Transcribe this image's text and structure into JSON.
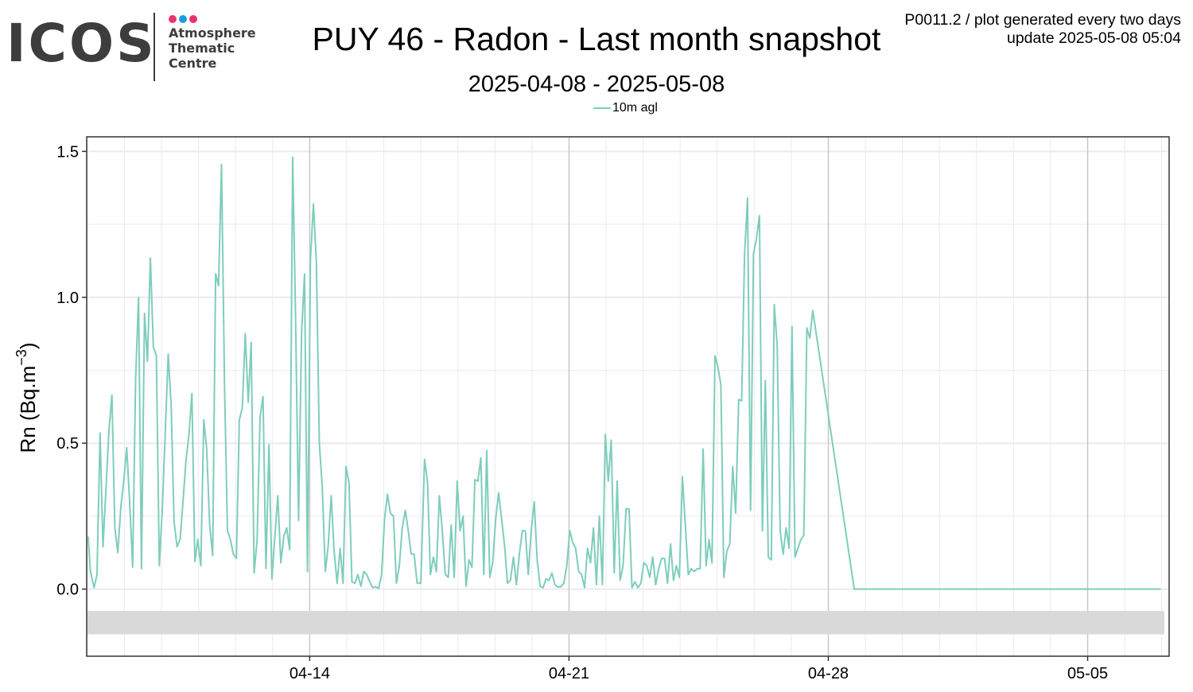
{
  "logo": {
    "word": "ICOS",
    "lines": [
      "Atmosphere",
      "Thematic",
      "Centre"
    ],
    "dot_colors": [
      "#e8336d",
      "#1e9be0",
      "#e8336d"
    ]
  },
  "info": {
    "line1": "P0011.2 / plot generated every two days",
    "line2": "update  2025-05-08 05:04"
  },
  "chart_data": {
    "type": "line",
    "title": "PUY 46 - Radon - Last month snapshot",
    "subtitle": "2025-04-08 - 2025-05-08",
    "ylabel_base": "Rn (Bq.m",
    "ylabel_sup": "−3",
    "ylabel_close": ")",
    "xlabel": "",
    "x_unit": "day of 2025 (04-14 = 0)",
    "xlim": [
      -6.02,
      23.2
    ],
    "ylim": [
      -0.23,
      1.55
    ],
    "y_ticks": [
      0.0,
      0.5,
      1.0,
      1.5
    ],
    "y_tick_labels": [
      "0.0",
      "0.5",
      "1.0",
      "1.5"
    ],
    "x_ticks": [
      0,
      7,
      14,
      21
    ],
    "x_tick_labels": [
      "04-14",
      "04-21",
      "04-28",
      "05-05"
    ],
    "grid": true,
    "legend_position": "top",
    "series": [
      {
        "name": "10m agl",
        "color": "#7fcdbb",
        "points": [
          [
            -5.98,
            0.18
          ],
          [
            -5.92,
            0.06
          ],
          [
            -5.82,
            0.005
          ],
          [
            -5.74,
            0.05
          ],
          [
            -5.66,
            0.535
          ],
          [
            -5.58,
            0.145
          ],
          [
            -5.5,
            0.34
          ],
          [
            -5.42,
            0.54
          ],
          [
            -5.34,
            0.665
          ],
          [
            -5.26,
            0.21
          ],
          [
            -5.18,
            0.125
          ],
          [
            -5.1,
            0.28
          ],
          [
            -5.02,
            0.37
          ],
          [
            -4.94,
            0.485
          ],
          [
            -4.86,
            0.3
          ],
          [
            -4.78,
            0.075
          ],
          [
            -4.7,
            0.72
          ],
          [
            -4.62,
            1.0
          ],
          [
            -4.54,
            0.07
          ],
          [
            -4.46,
            0.945
          ],
          [
            -4.38,
            0.78
          ],
          [
            -4.3,
            1.135
          ],
          [
            -4.22,
            0.83
          ],
          [
            -4.14,
            0.8
          ],
          [
            -4.06,
            0.08
          ],
          [
            -3.98,
            0.27
          ],
          [
            -3.9,
            0.53
          ],
          [
            -3.82,
            0.805
          ],
          [
            -3.74,
            0.63
          ],
          [
            -3.66,
            0.23
          ],
          [
            -3.58,
            0.145
          ],
          [
            -3.5,
            0.17
          ],
          [
            -3.42,
            0.3
          ],
          [
            -3.34,
            0.44
          ],
          [
            -3.26,
            0.53
          ],
          [
            -3.18,
            0.67
          ],
          [
            -3.1,
            0.095
          ],
          [
            -3.02,
            0.17
          ],
          [
            -2.94,
            0.08
          ],
          [
            -2.86,
            0.58
          ],
          [
            -2.78,
            0.48
          ],
          [
            -2.7,
            0.22
          ],
          [
            -2.62,
            0.115
          ],
          [
            -2.54,
            1.08
          ],
          [
            -2.46,
            1.04
          ],
          [
            -2.38,
            1.455
          ],
          [
            -2.3,
            0.7
          ],
          [
            -2.22,
            0.2
          ],
          [
            -2.14,
            0.17
          ],
          [
            -2.06,
            0.12
          ],
          [
            -1.98,
            0.105
          ],
          [
            -1.9,
            0.58
          ],
          [
            -1.82,
            0.62
          ],
          [
            -1.74,
            0.875
          ],
          [
            -1.66,
            0.64
          ],
          [
            -1.58,
            0.845
          ],
          [
            -1.5,
            0.055
          ],
          [
            -1.42,
            0.17
          ],
          [
            -1.34,
            0.59
          ],
          [
            -1.26,
            0.66
          ],
          [
            -1.18,
            0.07
          ],
          [
            -1.1,
            0.495
          ],
          [
            -1.02,
            0.035
          ],
          [
            -0.94,
            0.18
          ],
          [
            -0.86,
            0.32
          ],
          [
            -0.78,
            0.09
          ],
          [
            -0.7,
            0.18
          ],
          [
            -0.62,
            0.21
          ],
          [
            -0.54,
            0.135
          ],
          [
            -0.46,
            1.48
          ],
          [
            -0.38,
            0.92
          ],
          [
            -0.3,
            0.235
          ],
          [
            -0.22,
            0.88
          ],
          [
            -0.14,
            1.08
          ],
          [
            -0.06,
            0.06
          ],
          [
            0.02,
            1.13
          ],
          [
            0.1,
            1.32
          ],
          [
            0.18,
            1.12
          ],
          [
            0.26,
            0.5
          ],
          [
            0.34,
            0.35
          ],
          [
            0.42,
            0.06
          ],
          [
            0.5,
            0.15
          ],
          [
            0.58,
            0.32
          ],
          [
            0.66,
            0.13
          ],
          [
            0.74,
            0.02
          ],
          [
            0.82,
            0.14
          ],
          [
            0.9,
            0.02
          ],
          [
            0.98,
            0.42
          ],
          [
            1.06,
            0.365
          ],
          [
            1.14,
            0.025
          ],
          [
            1.22,
            0.02
          ],
          [
            1.3,
            0.05
          ],
          [
            1.38,
            0.01
          ],
          [
            1.46,
            0.06
          ],
          [
            1.54,
            0.05
          ],
          [
            1.62,
            0.025
          ],
          [
            1.7,
            0.005
          ],
          [
            1.78,
            0.008
          ],
          [
            1.86,
            0.002
          ],
          [
            1.94,
            0.05
          ],
          [
            2.02,
            0.24
          ],
          [
            2.1,
            0.325
          ],
          [
            2.18,
            0.26
          ],
          [
            2.26,
            0.25
          ],
          [
            2.34,
            0.02
          ],
          [
            2.42,
            0.08
          ],
          [
            2.5,
            0.21
          ],
          [
            2.58,
            0.27
          ],
          [
            2.66,
            0.2
          ],
          [
            2.74,
            0.12
          ],
          [
            2.82,
            0.12
          ],
          [
            2.9,
            0.02
          ],
          [
            3.0,
            0.02
          ],
          [
            3.1,
            0.445
          ],
          [
            3.18,
            0.37
          ],
          [
            3.26,
            0.05
          ],
          [
            3.34,
            0.11
          ],
          [
            3.42,
            0.06
          ],
          [
            3.5,
            0.32
          ],
          [
            3.58,
            0.2
          ],
          [
            3.66,
            0.05
          ],
          [
            3.74,
            0.04
          ],
          [
            3.82,
            0.22
          ],
          [
            3.9,
            0.04
          ],
          [
            3.98,
            0.37
          ],
          [
            4.06,
            0.2
          ],
          [
            4.14,
            0.25
          ],
          [
            4.22,
            0.01
          ],
          [
            4.3,
            0.1
          ],
          [
            4.38,
            0.075
          ],
          [
            4.46,
            0.375
          ],
          [
            4.54,
            0.37
          ],
          [
            4.62,
            0.45
          ],
          [
            4.7,
            0.05
          ],
          [
            4.78,
            0.475
          ],
          [
            4.86,
            0.04
          ],
          [
            4.94,
            0.09
          ],
          [
            5.02,
            0.24
          ],
          [
            5.1,
            0.33
          ],
          [
            5.18,
            0.24
          ],
          [
            5.26,
            0.15
          ],
          [
            5.34,
            0.02
          ],
          [
            5.42,
            0.03
          ],
          [
            5.5,
            0.11
          ],
          [
            5.58,
            0.015
          ],
          [
            5.66,
            0.12
          ],
          [
            5.74,
            0.2
          ],
          [
            5.82,
            0.2
          ],
          [
            5.9,
            0.05
          ],
          [
            5.98,
            0.2
          ],
          [
            6.06,
            0.3
          ],
          [
            6.14,
            0.1
          ],
          [
            6.22,
            0.01
          ],
          [
            6.3,
            0.005
          ],
          [
            6.38,
            0.035
          ],
          [
            6.46,
            0.03
          ],
          [
            6.54,
            0.055
          ],
          [
            6.62,
            0.015
          ],
          [
            6.7,
            0.007
          ],
          [
            6.78,
            0.008
          ],
          [
            6.86,
            0.02
          ],
          [
            6.94,
            0.08
          ],
          [
            7.02,
            0.2
          ],
          [
            7.1,
            0.16
          ],
          [
            7.18,
            0.14
          ],
          [
            7.26,
            0.06
          ],
          [
            7.34,
            0.05
          ],
          [
            7.42,
            0.005
          ],
          [
            7.5,
            0.14
          ],
          [
            7.58,
            0.09
          ],
          [
            7.66,
            0.21
          ],
          [
            7.74,
            0.015
          ],
          [
            7.82,
            0.25
          ],
          [
            7.9,
            0.015
          ],
          [
            7.98,
            0.53
          ],
          [
            8.06,
            0.37
          ],
          [
            8.14,
            0.51
          ],
          [
            8.22,
            0.055
          ],
          [
            8.3,
            0.37
          ],
          [
            8.38,
            0.03
          ],
          [
            8.46,
            0.08
          ],
          [
            8.54,
            0.275
          ],
          [
            8.62,
            0.275
          ],
          [
            8.7,
            0.005
          ],
          [
            8.78,
            0.025
          ],
          [
            8.86,
            0.005
          ],
          [
            8.94,
            0.02
          ],
          [
            9.02,
            0.09
          ],
          [
            9.1,
            0.08
          ],
          [
            9.18,
            0.04
          ],
          [
            9.26,
            0.11
          ],
          [
            9.34,
            0.015
          ],
          [
            9.42,
            0.07
          ],
          [
            9.5,
            0.105
          ],
          [
            9.58,
            0.105
          ],
          [
            9.66,
            0.02
          ],
          [
            9.74,
            0.155
          ],
          [
            9.82,
            0.03
          ],
          [
            9.9,
            0.08
          ],
          [
            9.98,
            0.04
          ],
          [
            10.06,
            0.385
          ],
          [
            10.14,
            0.22
          ],
          [
            10.22,
            0.05
          ],
          [
            10.3,
            0.07
          ],
          [
            10.38,
            0.06
          ],
          [
            10.46,
            0.07
          ],
          [
            10.54,
            0.07
          ],
          [
            10.62,
            0.48
          ],
          [
            10.7,
            0.08
          ],
          [
            10.78,
            0.17
          ],
          [
            10.86,
            0.09
          ],
          [
            10.94,
            0.8
          ],
          [
            11.02,
            0.76
          ],
          [
            11.1,
            0.7
          ],
          [
            11.18,
            0.04
          ],
          [
            11.26,
            0.13
          ],
          [
            11.34,
            0.155
          ],
          [
            11.42,
            0.42
          ],
          [
            11.5,
            0.26
          ],
          [
            11.58,
            0.65
          ],
          [
            11.66,
            0.645
          ],
          [
            11.74,
            1.15
          ],
          [
            11.82,
            1.34
          ],
          [
            11.9,
            0.27
          ],
          [
            11.98,
            1.15
          ],
          [
            12.06,
            1.2
          ],
          [
            12.14,
            1.28
          ],
          [
            12.22,
            0.2
          ],
          [
            12.3,
            0.715
          ],
          [
            12.38,
            0.11
          ],
          [
            12.46,
            0.1
          ],
          [
            12.54,
            0.975
          ],
          [
            12.62,
            0.835
          ],
          [
            12.7,
            0.2
          ],
          [
            12.78,
            0.12
          ],
          [
            12.86,
            0.21
          ],
          [
            12.94,
            0.14
          ],
          [
            13.02,
            0.9
          ],
          [
            13.1,
            0.11
          ],
          [
            13.18,
            0.14
          ],
          [
            13.26,
            0.17
          ],
          [
            13.34,
            0.185
          ],
          [
            13.42,
            0.895
          ],
          [
            13.5,
            0.86
          ],
          [
            13.58,
            0.955
          ],
          [
            14.7,
            0.0
          ],
          [
            22.97,
            0.0
          ]
        ]
      }
    ],
    "band": {
      "y_from": -0.155,
      "y_to": -0.075,
      "color": "#d9d9d9"
    }
  }
}
